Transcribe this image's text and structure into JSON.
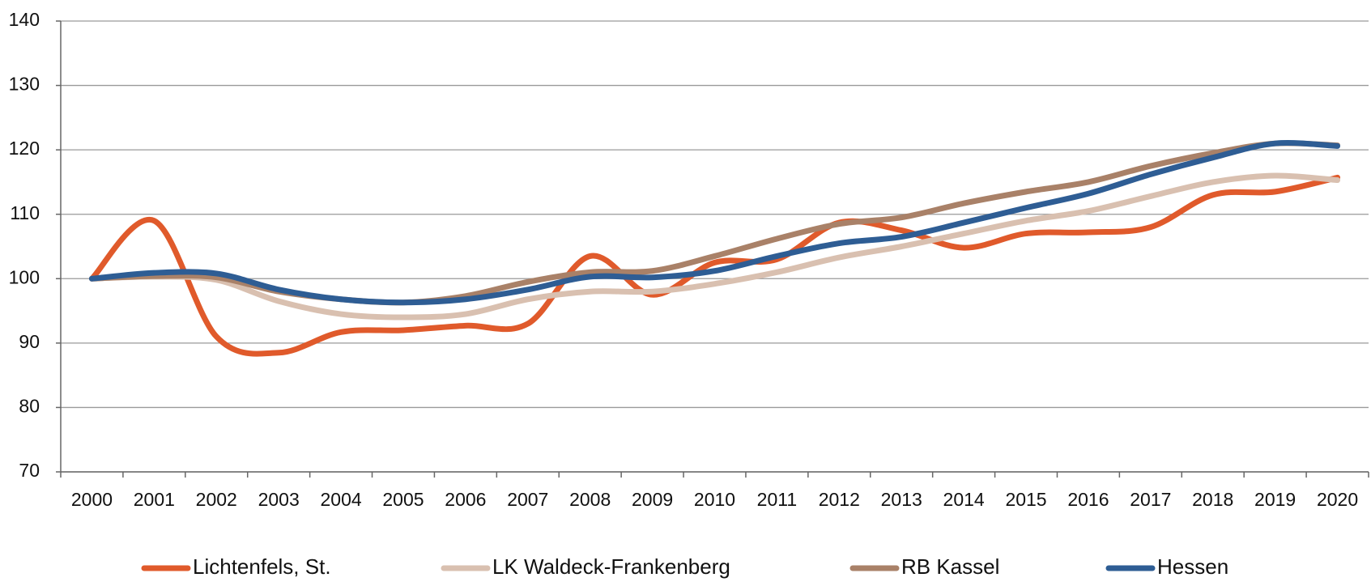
{
  "chart_data": {
    "type": "line",
    "categories": [
      "2000",
      "2001",
      "2002",
      "2003",
      "2004",
      "2005",
      "2006",
      "2007",
      "2008",
      "2009",
      "2010",
      "2011",
      "2012",
      "2013",
      "2014",
      "2015",
      "2016",
      "2017",
      "2018",
      "2019",
      "2020"
    ],
    "series": [
      {
        "name": "Lichtenfels, St.",
        "color": "#e05a2b",
        "values": [
          100,
          109,
          91,
          88.5,
          91.7,
          92,
          92.7,
          93,
          103.5,
          97.5,
          102.5,
          103,
          108.7,
          107.5,
          104.8,
          107,
          107.2,
          108,
          113,
          113.5,
          115.7
        ]
      },
      {
        "name": "LK Waldeck-Frankenberg",
        "color": "#d9c0b0",
        "values": [
          100,
          100.3,
          99.8,
          96.5,
          94.5,
          94,
          94.5,
          96.8,
          98,
          98,
          99.2,
          101,
          103.3,
          105,
          107,
          109,
          110.5,
          112.8,
          115,
          116,
          115.3
        ]
      },
      {
        "name": "RB Kassel",
        "color": "#a98168",
        "values": [
          100,
          100.4,
          100.2,
          98,
          96.8,
          96.3,
          97.3,
          99.5,
          101,
          101.2,
          103.5,
          106.2,
          108.5,
          109.5,
          111.7,
          113.5,
          115,
          117.5,
          119.5,
          121,
          120.7
        ]
      },
      {
        "name": "Hessen",
        "color": "#2e5d94",
        "values": [
          100,
          100.9,
          100.8,
          98.3,
          96.8,
          96.3,
          96.8,
          98.3,
          100.3,
          100.2,
          101.2,
          103.5,
          105.5,
          106.5,
          108.7,
          111,
          113.2,
          116.2,
          118.8,
          121,
          120.6
        ]
      }
    ],
    "ylim": [
      70,
      140
    ],
    "yticks": [
      70,
      80,
      90,
      100,
      110,
      120,
      130,
      140
    ],
    "grid": true,
    "legend": "bottom"
  }
}
